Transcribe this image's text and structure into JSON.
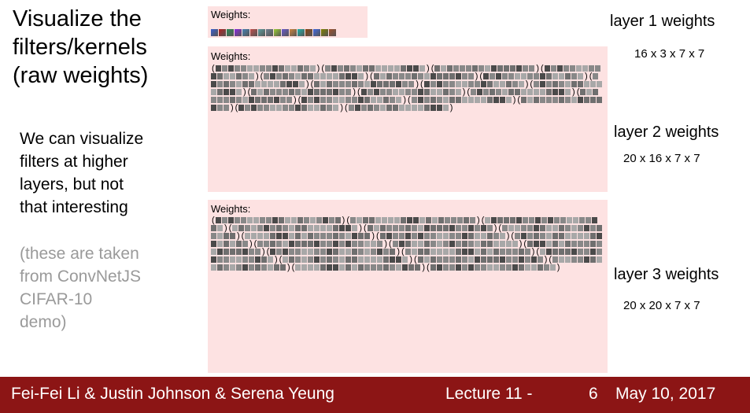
{
  "slide": {
    "title": "Visualize the\nfilters/kernels\n(raw weights)",
    "body": "We can visualize\nfilters at higher\nlayers, but not\nthat interesting",
    "note": "(these are taken\nfrom ConvNetJS\nCIFAR-10\ndemo)"
  },
  "panels": {
    "layer1": {
      "heading": "Weights:",
      "side_label": "layer 1 weights",
      "dims": "16 x 3 x 7 x 7",
      "filter_count": 16
    },
    "layer2": {
      "heading": "Weights:",
      "side_label": "layer 2 weights",
      "dims": "20 x 16 x 7 x 7",
      "filter_count": 20,
      "kernels_per_filter": 16
    },
    "layer3": {
      "heading": "Weights:",
      "side_label": "layer 3 weights",
      "dims": "20 x 20 x 7 x 7",
      "filter_count": 20,
      "kernels_per_filter": 20
    }
  },
  "colors": {
    "footer_background": "#8c1515",
    "panel_background": "#fde2e2",
    "note_text": "#9a9a9a",
    "layer1_palette": [
      "#3a5fcd",
      "#b22222",
      "#2e8b57",
      "#8a2be2",
      "#4682b4",
      "#c0504d",
      "#5f9ea0",
      "#708090",
      "#9acd32",
      "#6a5acd",
      "#cd853f",
      "#20b2aa",
      "#8b4513",
      "#4169e1",
      "#808000",
      "#a0522d"
    ]
  },
  "footer": {
    "authors": "Fei-Fei Li & Justin Johnson & Serena Yeung",
    "lecture": "Lecture 11 -",
    "slide_number": "6",
    "date": "May 10, 2017"
  }
}
